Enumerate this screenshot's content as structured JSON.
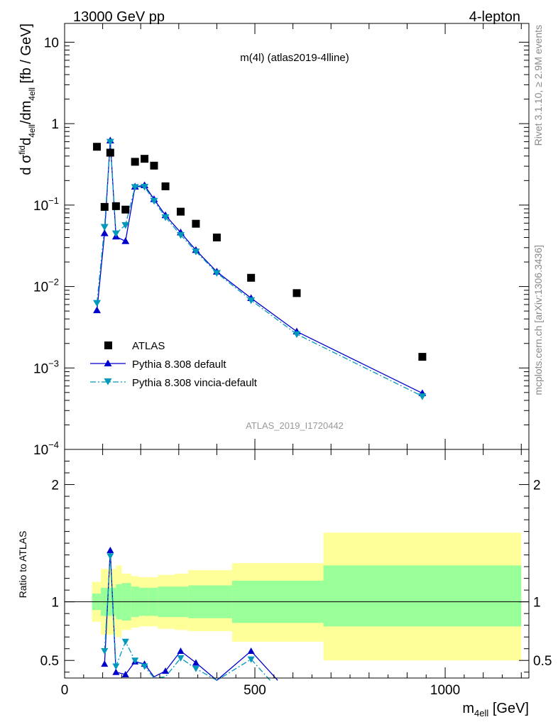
{
  "header": {
    "left": "13000 GeV pp",
    "right": "4-lepton"
  },
  "side_labels": {
    "rivet": "Rivet 3.1.10, ≥ 2.9M events",
    "mcplots": "mcplots.cern.ch [arXiv:1306.3436]"
  },
  "colors": {
    "atlas": "#000000",
    "default": "#0000cc",
    "vincia": "#0099bb",
    "band_inner": "#99ff99",
    "band_outer": "#ffff99"
  },
  "chart_data": {
    "type": "scatter",
    "title": "m(4l) (atlas2019-4lline)",
    "watermark": "ATLAS_2019_I1720442",
    "xlabel": "m_4ell [GeV]",
    "xlabel_main": "m",
    "xlabel_sub": "4ell",
    "xlabel_unit": " [GeV]",
    "xlim": [
      0,
      1220
    ],
    "x_ticks": [
      "0",
      "500",
      "1000"
    ],
    "main_panel": {
      "ylabel": "d σ fid_4ell / dm_4ell [fb / GeV]",
      "ylabel_parts": {
        "d": "d ",
        "sigma": "σ",
        "sup": "fid",
        "sub1": "4ell",
        "mid": "/dm",
        "sub2": "4ell",
        "unit": " [fb / GeV]"
      },
      "yscale": "log",
      "ylim": [
        0.0001,
        17
      ],
      "y_ticks": [
        {
          "value": 10,
          "label": "10"
        },
        {
          "value": 1,
          "label": "1"
        },
        {
          "value": 0.1,
          "label": "10",
          "exp": "−1"
        },
        {
          "value": 0.01,
          "label": "10",
          "exp": "−2"
        },
        {
          "value": 0.001,
          "label": "10",
          "exp": "−3"
        },
        {
          "value": 0.0001,
          "label": "10",
          "exp": "−4"
        }
      ],
      "legend_position": "bottom-left",
      "series": [
        {
          "name": "ATLAS",
          "marker": "square",
          "x": [
            85,
            105,
            120,
            135,
            160,
            185,
            210,
            235,
            265,
            305,
            345,
            400,
            490,
            610,
            940
          ],
          "y": [
            0.52,
            0.095,
            0.44,
            0.097,
            0.088,
            0.34,
            0.37,
            0.305,
            0.17,
            0.083,
            0.059,
            0.04,
            0.0128,
            0.0083,
            0.00137
          ]
        },
        {
          "name": "Pythia 8.308 default",
          "marker": "triangle-up",
          "line": "solid",
          "x": [
            85,
            105,
            120,
            135,
            160,
            185,
            210,
            235,
            265,
            305,
            345,
            400,
            490,
            610,
            940
          ],
          "y": [
            0.0051,
            0.045,
            0.62,
            0.041,
            0.036,
            0.168,
            0.175,
            0.118,
            0.075,
            0.046,
            0.028,
            0.0152,
            0.0072,
            0.0028,
            0.00049
          ]
        },
        {
          "name": "Pythia 8.308 vincia-default",
          "marker": "triangle-down",
          "line": "dashdot",
          "x": [
            85,
            105,
            120,
            135,
            160,
            185,
            210,
            235,
            265,
            305,
            345,
            400,
            490,
            610,
            940
          ],
          "y": [
            0.0063,
            0.054,
            0.6,
            0.045,
            0.057,
            0.167,
            0.168,
            0.113,
            0.071,
            0.043,
            0.027,
            0.0147,
            0.0068,
            0.0026,
            0.00045
          ]
        }
      ]
    },
    "ratio_panel": {
      "ylabel": "Ratio to ATLAS",
      "ylim": [
        0.35,
        2.3
      ],
      "y_ticks": [
        "0.5",
        "1",
        "2"
      ],
      "reference_line": 1,
      "bands": {
        "edges": [
          72,
          95,
          110,
          135,
          150,
          175,
          195,
          220,
          245,
          290,
          325,
          440,
          680,
          1200
        ],
        "inner_low": [
          0.93,
          0.88,
          0.88,
          0.85,
          0.84,
          0.87,
          0.88,
          0.88,
          0.87,
          0.87,
          0.86,
          0.82,
          0.79
        ],
        "inner_high": [
          1.07,
          1.12,
          1.12,
          1.15,
          1.16,
          1.13,
          1.12,
          1.12,
          1.13,
          1.13,
          1.14,
          1.18,
          1.31
        ],
        "outer_low": [
          0.83,
          0.72,
          0.72,
          0.7,
          0.76,
          0.78,
          0.79,
          0.79,
          0.77,
          0.76,
          0.75,
          0.66,
          0.5
        ],
        "outer_high": [
          1.17,
          1.28,
          1.28,
          1.31,
          1.24,
          1.22,
          1.21,
          1.21,
          1.23,
          1.24,
          1.27,
          1.33,
          1.59
        ]
      },
      "series": [
        {
          "name": "Pythia 8.308 default",
          "x": [
            105,
            120,
            135,
            160,
            185,
            210,
            235,
            265,
            305,
            345,
            400,
            490,
            560
          ],
          "y": [
            0.47,
            1.44,
            0.4,
            0.38,
            0.49,
            0.47,
            0.36,
            0.41,
            0.58,
            0.48,
            0.33,
            0.58,
            0.33
          ]
        },
        {
          "name": "Pythia 8.308 vincia-default",
          "x": [
            105,
            120,
            135,
            160,
            185,
            210,
            235,
            265,
            305,
            345,
            400,
            490,
            540
          ],
          "y": [
            0.58,
            1.39,
            0.45,
            0.66,
            0.5,
            0.45,
            0.35,
            0.36,
            0.52,
            0.43,
            0.33,
            0.51,
            0.33
          ]
        }
      ]
    }
  }
}
